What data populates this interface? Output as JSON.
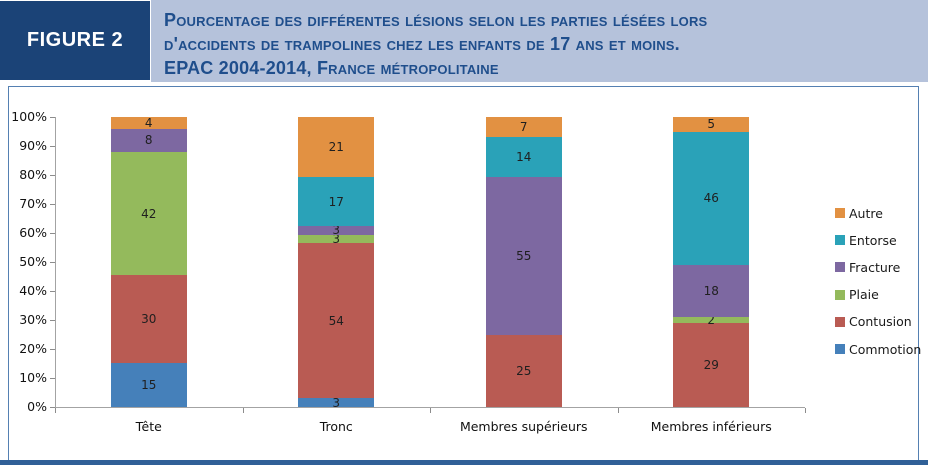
{
  "header": {
    "badge": "FIGURE 2",
    "title_lines": [
      "Pourcentage des différentes lésions selon les parties lésées lors",
      "d'accidents de trampolines chez les enfants de 17 ans et moins.",
      "EPAC 2004-2014, France métropolitaine"
    ]
  },
  "colors": {
    "badge_bg": "#1B4377",
    "band_bg": "#B5C2DB",
    "title_text": "#1F4E8C",
    "panel_border": "#5580B2",
    "bottom_rule": "#306097",
    "axis": "#A3A3A3"
  },
  "chart_data": {
    "type": "bar",
    "subtype": "stacked-100-percent",
    "title": "",
    "xlabel": "",
    "ylabel": "",
    "ylim": [
      0,
      100
    ],
    "grid": false,
    "legend_position": "right",
    "categories": [
      "Tête",
      "Tronc",
      "Membres supérieurs",
      "Membres inférieurs"
    ],
    "y_ticks": [
      "0%",
      "10%",
      "20%",
      "30%",
      "40%",
      "50%",
      "60%",
      "70%",
      "80%",
      "90%",
      "100%"
    ],
    "series": [
      {
        "name": "Commotion",
        "color": "#4580BA",
        "values": [
          15,
          3,
          0,
          0
        ]
      },
      {
        "name": "Contusion",
        "color": "#B95B53",
        "values": [
          30,
          54,
          25,
          29
        ]
      },
      {
        "name": "Plaie",
        "color": "#94BA5C",
        "values": [
          42,
          3,
          0,
          2
        ]
      },
      {
        "name": "Fracture",
        "color": "#7D68A1",
        "values": [
          8,
          3,
          55,
          18
        ]
      },
      {
        "name": "Entorse",
        "color": "#2AA2B8",
        "values": [
          0,
          17,
          14,
          46
        ]
      },
      {
        "name": "Autre",
        "color": "#E29142",
        "values": [
          4,
          21,
          7,
          5
        ]
      }
    ],
    "legend_order": [
      "Autre",
      "Entorse",
      "Fracture",
      "Plaie",
      "Contusion",
      "Commotion"
    ]
  }
}
